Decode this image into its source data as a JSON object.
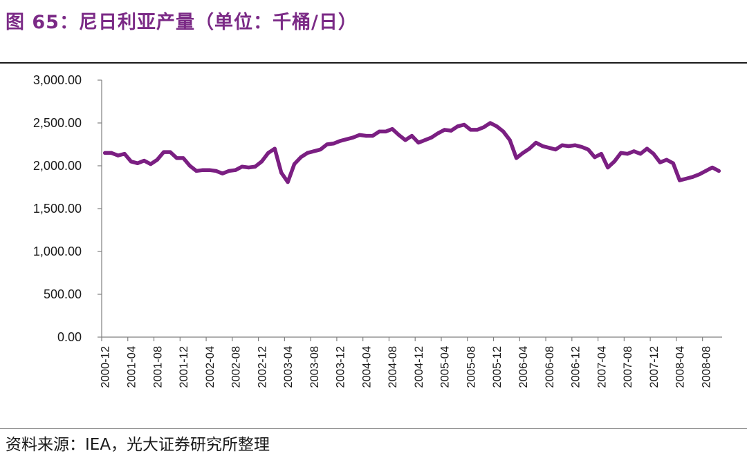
{
  "title": "图 65：尼日利亚产量（单位：千桶/日）",
  "source": "资料来源：IEA，光大证券研究所整理",
  "colors": {
    "series": "#7b1f82",
    "title": "#7b2a86",
    "axis": "#7f7f7f"
  },
  "chart_data": {
    "type": "line",
    "title": "图 65：尼日利亚产量（单位：千桶/日）",
    "xlabel": "",
    "ylabel": "",
    "ylim": [
      0,
      3000
    ],
    "yticks": [
      0,
      500,
      1000,
      1500,
      2000,
      2500,
      3000
    ],
    "ytick_labels": [
      "0.00",
      "500.00",
      "1,000.00",
      "1,500.00",
      "2,000.00",
      "2,500.00",
      "3,000.00"
    ],
    "xtick_labels": [
      "2000-12",
      "2001-04",
      "2001-08",
      "2001-12",
      "2002-04",
      "2002-08",
      "2002-12",
      "2003-04",
      "2003-08",
      "2003-12",
      "2004-04",
      "2004-08",
      "2004-12",
      "2005-04",
      "2005-08",
      "2005-12",
      "2006-04",
      "2006-08",
      "2006-12",
      "2007-04",
      "2007-08",
      "2007-12",
      "2008-04",
      "2008-08"
    ],
    "grid": false,
    "legend": "none",
    "x": [
      "2000-12",
      "2001-01",
      "2001-02",
      "2001-03",
      "2001-04",
      "2001-05",
      "2001-06",
      "2001-07",
      "2001-08",
      "2001-09",
      "2001-10",
      "2001-11",
      "2001-12",
      "2002-01",
      "2002-02",
      "2002-03",
      "2002-04",
      "2002-05",
      "2002-06",
      "2002-07",
      "2002-08",
      "2002-09",
      "2002-10",
      "2002-11",
      "2002-12",
      "2003-01",
      "2003-02",
      "2003-03",
      "2003-04",
      "2003-05",
      "2003-06",
      "2003-07",
      "2003-08",
      "2003-09",
      "2003-10",
      "2003-11",
      "2003-12",
      "2004-01",
      "2004-02",
      "2004-03",
      "2004-04",
      "2004-05",
      "2004-06",
      "2004-07",
      "2004-08",
      "2004-09",
      "2004-10",
      "2004-11",
      "2004-12",
      "2005-01",
      "2005-02",
      "2005-03",
      "2005-04",
      "2005-05",
      "2005-06",
      "2005-07",
      "2005-08",
      "2005-09",
      "2005-10",
      "2005-11",
      "2005-12",
      "2006-01",
      "2006-02",
      "2006-03",
      "2006-04",
      "2006-05",
      "2006-06",
      "2006-07",
      "2006-08",
      "2006-09",
      "2006-10",
      "2006-11",
      "2006-12",
      "2007-01",
      "2007-02",
      "2007-03",
      "2007-04",
      "2007-05",
      "2007-06",
      "2007-07",
      "2007-08",
      "2007-09",
      "2007-10",
      "2007-11",
      "2007-12",
      "2008-01",
      "2008-02",
      "2008-03",
      "2008-04",
      "2008-05",
      "2008-06",
      "2008-07",
      "2008-08",
      "2008-09",
      "2008-10"
    ],
    "series": [
      {
        "values": [
          2150,
          2150,
          2120,
          2140,
          2050,
          2030,
          2060,
          2020,
          2070,
          2160,
          2160,
          2090,
          2090,
          2000,
          1940,
          1950,
          1950,
          1940,
          1910,
          1940,
          1950,
          1990,
          1980,
          1990,
          2050,
          2150,
          2200,
          1920,
          1810,
          2020,
          2100,
          2150,
          2170,
          2190,
          2250,
          2260,
          2290,
          2310,
          2330,
          2360,
          2350,
          2350,
          2400,
          2400,
          2430,
          2360,
          2300,
          2350,
          2270,
          2300,
          2330,
          2380,
          2420,
          2410,
          2460,
          2480,
          2420,
          2420,
          2450,
          2500,
          2460,
          2400,
          2300,
          2090,
          2150,
          2200,
          2270,
          2230,
          2210,
          2190,
          2240,
          2230,
          2240,
          2220,
          2190,
          2100,
          2140,
          1980,
          2050,
          2150,
          2140,
          2170,
          2140,
          2200,
          2140,
          2040,
          2070,
          2030,
          1830,
          1850,
          1870,
          1900,
          1940,
          1980,
          1940
        ]
      }
    ]
  }
}
